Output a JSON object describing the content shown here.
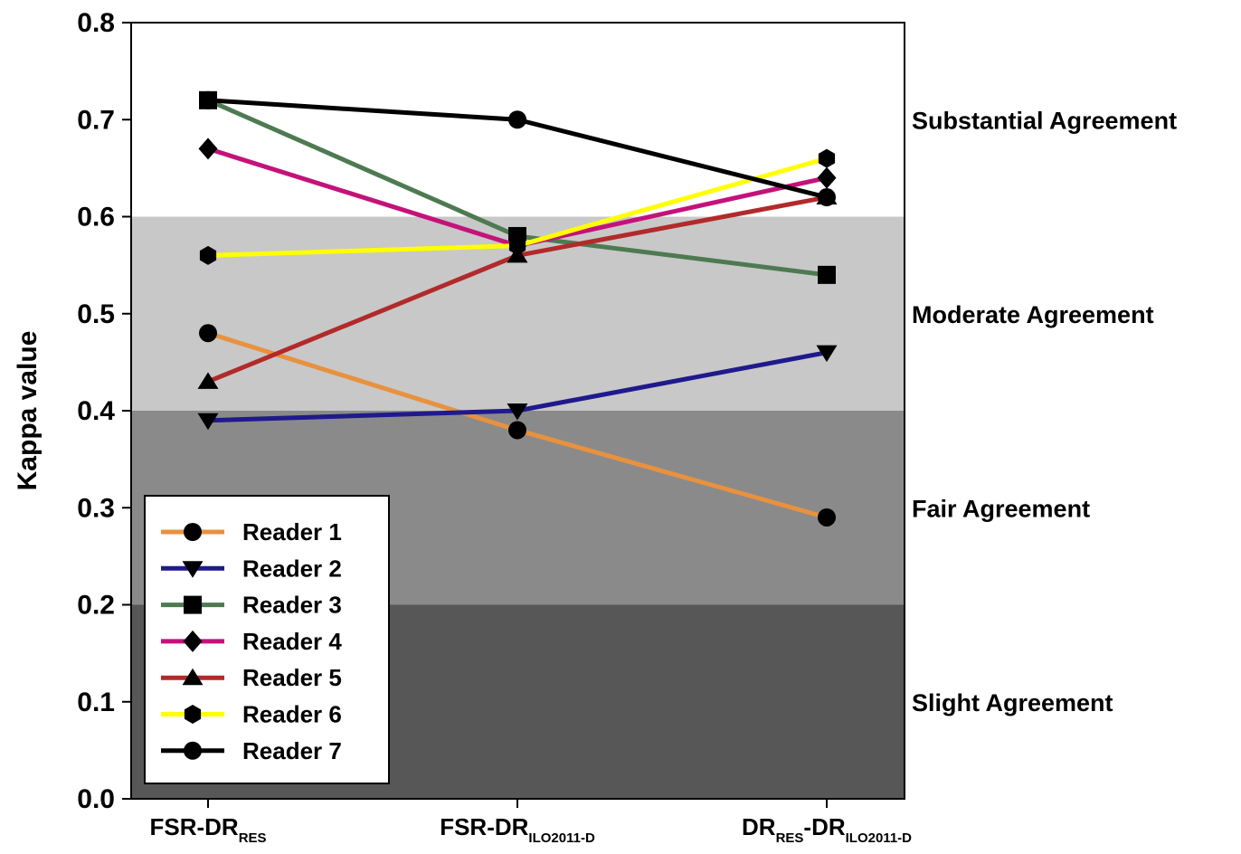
{
  "chart_data": {
    "type": "line",
    "ylabel": "Kappa value",
    "ylim": [
      0,
      0.8
    ],
    "yticks": [
      "0.0",
      "0.1",
      "0.2",
      "0.3",
      "0.4",
      "0.5",
      "0.6",
      "0.7",
      "0.8"
    ],
    "categories": [
      {
        "main": "FSR-DR",
        "sub": "RES",
        "main2": "",
        "sub2": ""
      },
      {
        "main": "FSR-DR",
        "sub": "ILO2011-D",
        "main2": "",
        "sub2": ""
      },
      {
        "main": "DR",
        "sub": "RES",
        "main2": "-DR",
        "sub2": "ILO2011-D"
      }
    ],
    "bands": [
      {
        "label": "Slight Agreement",
        "from": 0.0,
        "to": 0.2,
        "color": "#575757"
      },
      {
        "label": "Fair Agreement",
        "from": 0.2,
        "to": 0.4,
        "color": "#8a8a8a"
      },
      {
        "label": "Moderate Agreement",
        "from": 0.4,
        "to": 0.6,
        "color": "#c8c8c8"
      },
      {
        "label": "Substantial Agreement",
        "from": 0.6,
        "to": 0.8,
        "color": "#ffffff"
      }
    ],
    "series": [
      {
        "name": "Reader 1",
        "values": [
          0.48,
          0.38,
          0.29
        ],
        "color": "#e8913f",
        "marker": "circle"
      },
      {
        "name": "Reader 2",
        "values": [
          0.39,
          0.4,
          0.46
        ],
        "color": "#1f1a8c",
        "marker": "triangle-down"
      },
      {
        "name": "Reader 3",
        "values": [
          0.72,
          0.58,
          0.54
        ],
        "color": "#4e7a52",
        "marker": "square"
      },
      {
        "name": "Reader 4",
        "values": [
          0.67,
          0.57,
          0.64
        ],
        "color": "#c4127a",
        "marker": "diamond"
      },
      {
        "name": "Reader 5",
        "values": [
          0.43,
          0.56,
          0.62
        ],
        "color": "#b22a2a",
        "marker": "triangle-up"
      },
      {
        "name": "Reader 6",
        "values": [
          0.56,
          0.57,
          0.66
        ],
        "color": "#ffff00",
        "marker": "hexagon"
      },
      {
        "name": "Reader 7",
        "values": [
          0.72,
          0.7,
          0.62
        ],
        "color": "#000000",
        "marker": "circle"
      }
    ],
    "legend_position": "bottom-left"
  }
}
